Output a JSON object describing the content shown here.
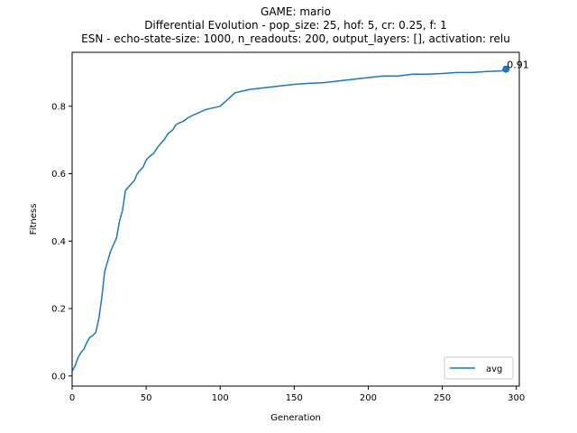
{
  "chart_data": {
    "type": "line",
    "title_lines": [
      "GAME: mario",
      "Differential Evolution - pop_size: 25, hof: 5, cr: 0.25, f: 1",
      "ESN - echo-state-size: 1000, n_readouts: 200, output_layers: [], activation: relu"
    ],
    "xlabel": "Generation",
    "ylabel": "Fitness",
    "xlim": [
      0,
      302
    ],
    "ylim": [
      -0.03,
      0.96
    ],
    "xticks": [
      0,
      50,
      100,
      150,
      200,
      250,
      300
    ],
    "yticks": [
      0.0,
      0.2,
      0.4,
      0.6,
      0.8
    ],
    "xtick_labels": [
      "0",
      "50",
      "100",
      "150",
      "200",
      "250",
      "300"
    ],
    "ytick_labels": [
      "0.0",
      "0.2",
      "0.4",
      "0.6",
      "0.8"
    ],
    "grid": false,
    "legend": {
      "position": "lower-right",
      "entries": [
        "avg"
      ]
    },
    "series": [
      {
        "name": "avg",
        "color": "#1f77b4",
        "x": [
          0,
          2,
          4,
          6,
          8,
          10,
          12,
          14,
          16,
          18,
          20,
          22,
          24,
          26,
          28,
          30,
          32,
          34,
          36,
          38,
          40,
          42,
          44,
          46,
          48,
          50,
          52,
          55,
          58,
          60,
          62,
          65,
          68,
          70,
          72,
          75,
          78,
          80,
          85,
          90,
          95,
          100,
          105,
          110,
          115,
          120,
          130,
          140,
          150,
          160,
          170,
          180,
          190,
          200,
          210,
          220,
          230,
          240,
          250,
          260,
          270,
          280,
          290,
          293
        ],
        "y": [
          0.015,
          0.03,
          0.055,
          0.07,
          0.08,
          0.1,
          0.115,
          0.12,
          0.13,
          0.17,
          0.23,
          0.31,
          0.34,
          0.37,
          0.39,
          0.41,
          0.46,
          0.49,
          0.55,
          0.56,
          0.57,
          0.58,
          0.6,
          0.61,
          0.62,
          0.64,
          0.65,
          0.66,
          0.68,
          0.69,
          0.7,
          0.72,
          0.73,
          0.745,
          0.75,
          0.755,
          0.765,
          0.77,
          0.78,
          0.79,
          0.795,
          0.8,
          0.82,
          0.84,
          0.845,
          0.85,
          0.855,
          0.86,
          0.865,
          0.868,
          0.87,
          0.875,
          0.88,
          0.885,
          0.89,
          0.89,
          0.895,
          0.895,
          0.897,
          0.9,
          0.9,
          0.903,
          0.905,
          0.91
        ]
      }
    ],
    "annotations": [
      {
        "x": 293,
        "y": 0.91,
        "text": "0.91",
        "marker": "point"
      }
    ]
  }
}
